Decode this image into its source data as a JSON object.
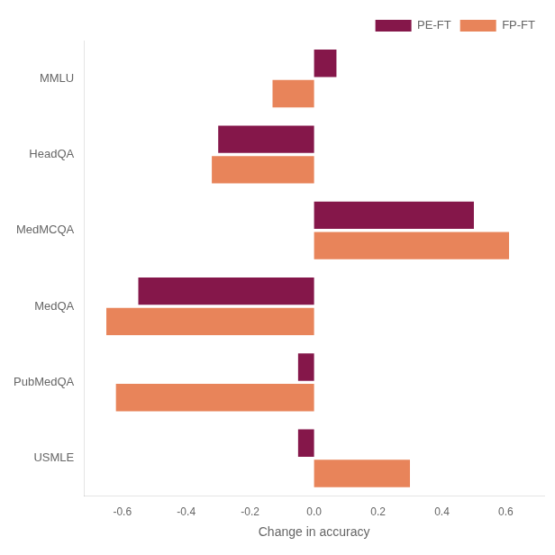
{
  "chart_data": {
    "type": "bar",
    "orientation": "horizontal",
    "categories": [
      "MMLU",
      "HeadQA",
      "MedMCQA",
      "MedQA",
      "PubMedQA",
      "USMLE"
    ],
    "series": [
      {
        "name": "PE-FT",
        "color": "#85174a",
        "values": [
          0.07,
          -0.3,
          0.5,
          -0.55,
          -0.05,
          -0.05
        ]
      },
      {
        "name": "FP-FT",
        "color": "#e8845a",
        "values": [
          -0.13,
          -0.32,
          0.61,
          -0.65,
          -0.62,
          0.3
        ]
      }
    ],
    "xlabel": "Change in accuracy",
    "xlim": [
      -0.72,
      0.72
    ],
    "xticks": [
      -0.6,
      -0.4,
      -0.2,
      {
        "value": 0,
        "label": "0.0"
      },
      0.2,
      0.4,
      0.6
    ],
    "grid": false,
    "legend": "upper right"
  }
}
